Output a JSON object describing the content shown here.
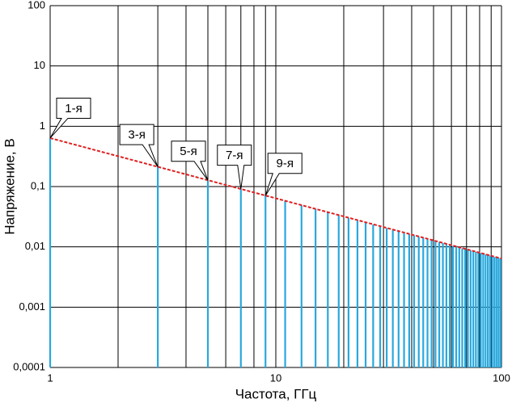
{
  "chart_data": {
    "type": "stem",
    "x_label": "Частота, ГГц",
    "y_label": "Напряжение, В",
    "log_x": true,
    "log_y": true,
    "grid": true,
    "xlim": [
      1,
      100
    ],
    "ylim": [
      0.0001,
      100
    ],
    "xticks": [
      1,
      10,
      100
    ],
    "xgrid": [
      1,
      2,
      3,
      4,
      5,
      6,
      7,
      8,
      9,
      10,
      20,
      30,
      40,
      50,
      60,
      70,
      80,
      90,
      100
    ],
    "yticks": [
      {
        "value": 0.0001,
        "label": "0,0001"
      },
      {
        "value": 0.001,
        "label": "0,001"
      },
      {
        "value": 0.01,
        "label": "0,01"
      },
      {
        "value": 0.1,
        "label": "0,1"
      },
      1,
      10,
      100
    ],
    "color": "#29a8dd",
    "x": [
      1,
      3,
      5,
      7,
      9,
      11,
      13,
      15,
      17,
      19,
      21,
      23,
      25,
      27,
      29,
      31,
      33,
      35,
      37,
      39,
      41,
      43,
      45,
      47,
      49,
      51,
      53,
      55,
      57,
      59,
      61,
      63,
      65,
      67,
      69,
      71,
      73,
      75,
      77,
      79,
      81,
      83,
      85,
      87,
      89,
      91,
      93,
      95,
      97,
      99
    ],
    "values": [
      0.637,
      0.212,
      0.127,
      0.0909,
      0.0707,
      0.0579,
      0.049,
      0.0424,
      0.0374,
      0.0335,
      0.0303,
      0.0277,
      0.0255,
      0.0236,
      0.022,
      0.0205,
      0.0193,
      0.0182,
      0.0172,
      0.0163,
      0.0155,
      0.0148,
      0.0141,
      0.0135,
      0.013,
      0.0125,
      0.012,
      0.0116,
      0.0112,
      0.0108,
      0.0104,
      0.0101,
      0.0098,
      0.0095,
      0.0092,
      0.009,
      0.0087,
      0.0085,
      0.0083,
      0.0081,
      0.0079,
      0.0077,
      0.0075,
      0.0073,
      0.0072,
      0.007,
      0.0068,
      0.0067,
      0.0066,
      0.0064
    ],
    "envelope": {
      "x": [
        1,
        100
      ],
      "values": [
        0.637,
        0.0064
      ],
      "color": "#e02020"
    },
    "annotations": [
      {
        "text": "1-я",
        "x": 1,
        "y": 0.637
      },
      {
        "text": "3-я",
        "x": 3,
        "y": 0.212
      },
      {
        "text": "5-я",
        "x": 5,
        "y": 0.127
      },
      {
        "text": "7-я",
        "x": 7,
        "y": 0.0909
      },
      {
        "text": "9-я",
        "x": 9,
        "y": 0.0707
      }
    ]
  }
}
